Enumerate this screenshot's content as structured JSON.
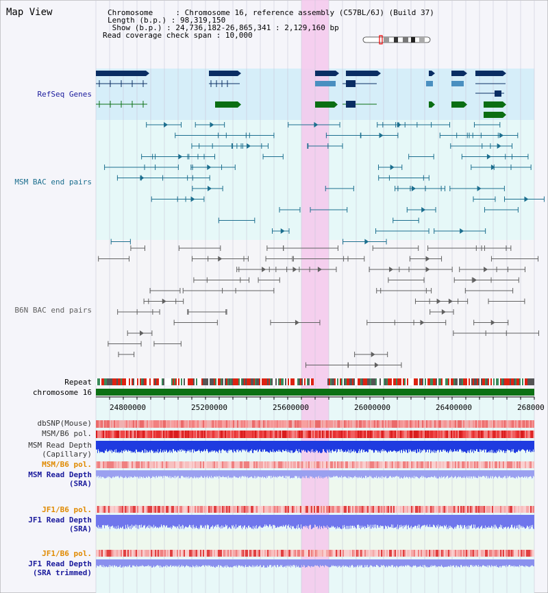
{
  "view_title": "Map View",
  "info": {
    "rows": [
      {
        "key": "Chromosome     ",
        "value": "Chromosome 16, reference assembly (C57BL/6J) (Build 37)"
      },
      {
        "key": "Length (b.p.) ",
        "value": "98,319,150"
      },
      {
        "key": " Show (b.p.) ",
        "value": "24,736,182-26,865,341 : 2,129,160 bp"
      },
      {
        "key": "Read coverage check span ",
        "value": "10,000"
      }
    ]
  },
  "tracks": {
    "refseq": "RefSeq Genes",
    "msm_bac": "MSM BAC end pairs",
    "b6n_bac": "B6N BAC end pairs",
    "repeat": "Repeat",
    "chromosome": "chromosome 16",
    "dbsnp": "dbSNP(Mouse)",
    "msm_b6_pol": "MSM/B6 pol.",
    "msm_read_cap_1": "MSM Read Depth",
    "msm_read_cap_2": "(Capillary)",
    "msm_b6_pol_sra": "MSM/B6 pol.",
    "msm_read_sra_1": "MSM Read Depth",
    "msm_read_sra_2": "(SRA)",
    "jf1_b6_pol": "JF1/B6 pol.",
    "jf1_read_sra_1": "JF1 Read Depth",
    "jf1_read_sra_2": "(SRA)",
    "jf1_b6_pol_trim": "JF1/B6 pol.",
    "jf1_read_trim_1": "JF1 Read Depth",
    "jf1_read_trim_2": "(SRA trimmed)"
  },
  "axis": {
    "ticks": [
      "24800000",
      "25200000",
      "25600000",
      "26000000",
      "26400000",
      "268000"
    ]
  },
  "colors": {
    "refseq_bg": "#d6eef9",
    "gene_navy": "#0a2d63",
    "gene_steel": "#4a8fc0",
    "gene_green": "#0a6e12",
    "msm_line": "#1b6e8e",
    "b6n_line": "#606060",
    "highlight": "#f5c8ec",
    "chrom_bar": "#0c7014",
    "label_navy": "#1a1a9c",
    "label_orange": "#e08a00",
    "label_teal": "#1b6e8e"
  }
}
